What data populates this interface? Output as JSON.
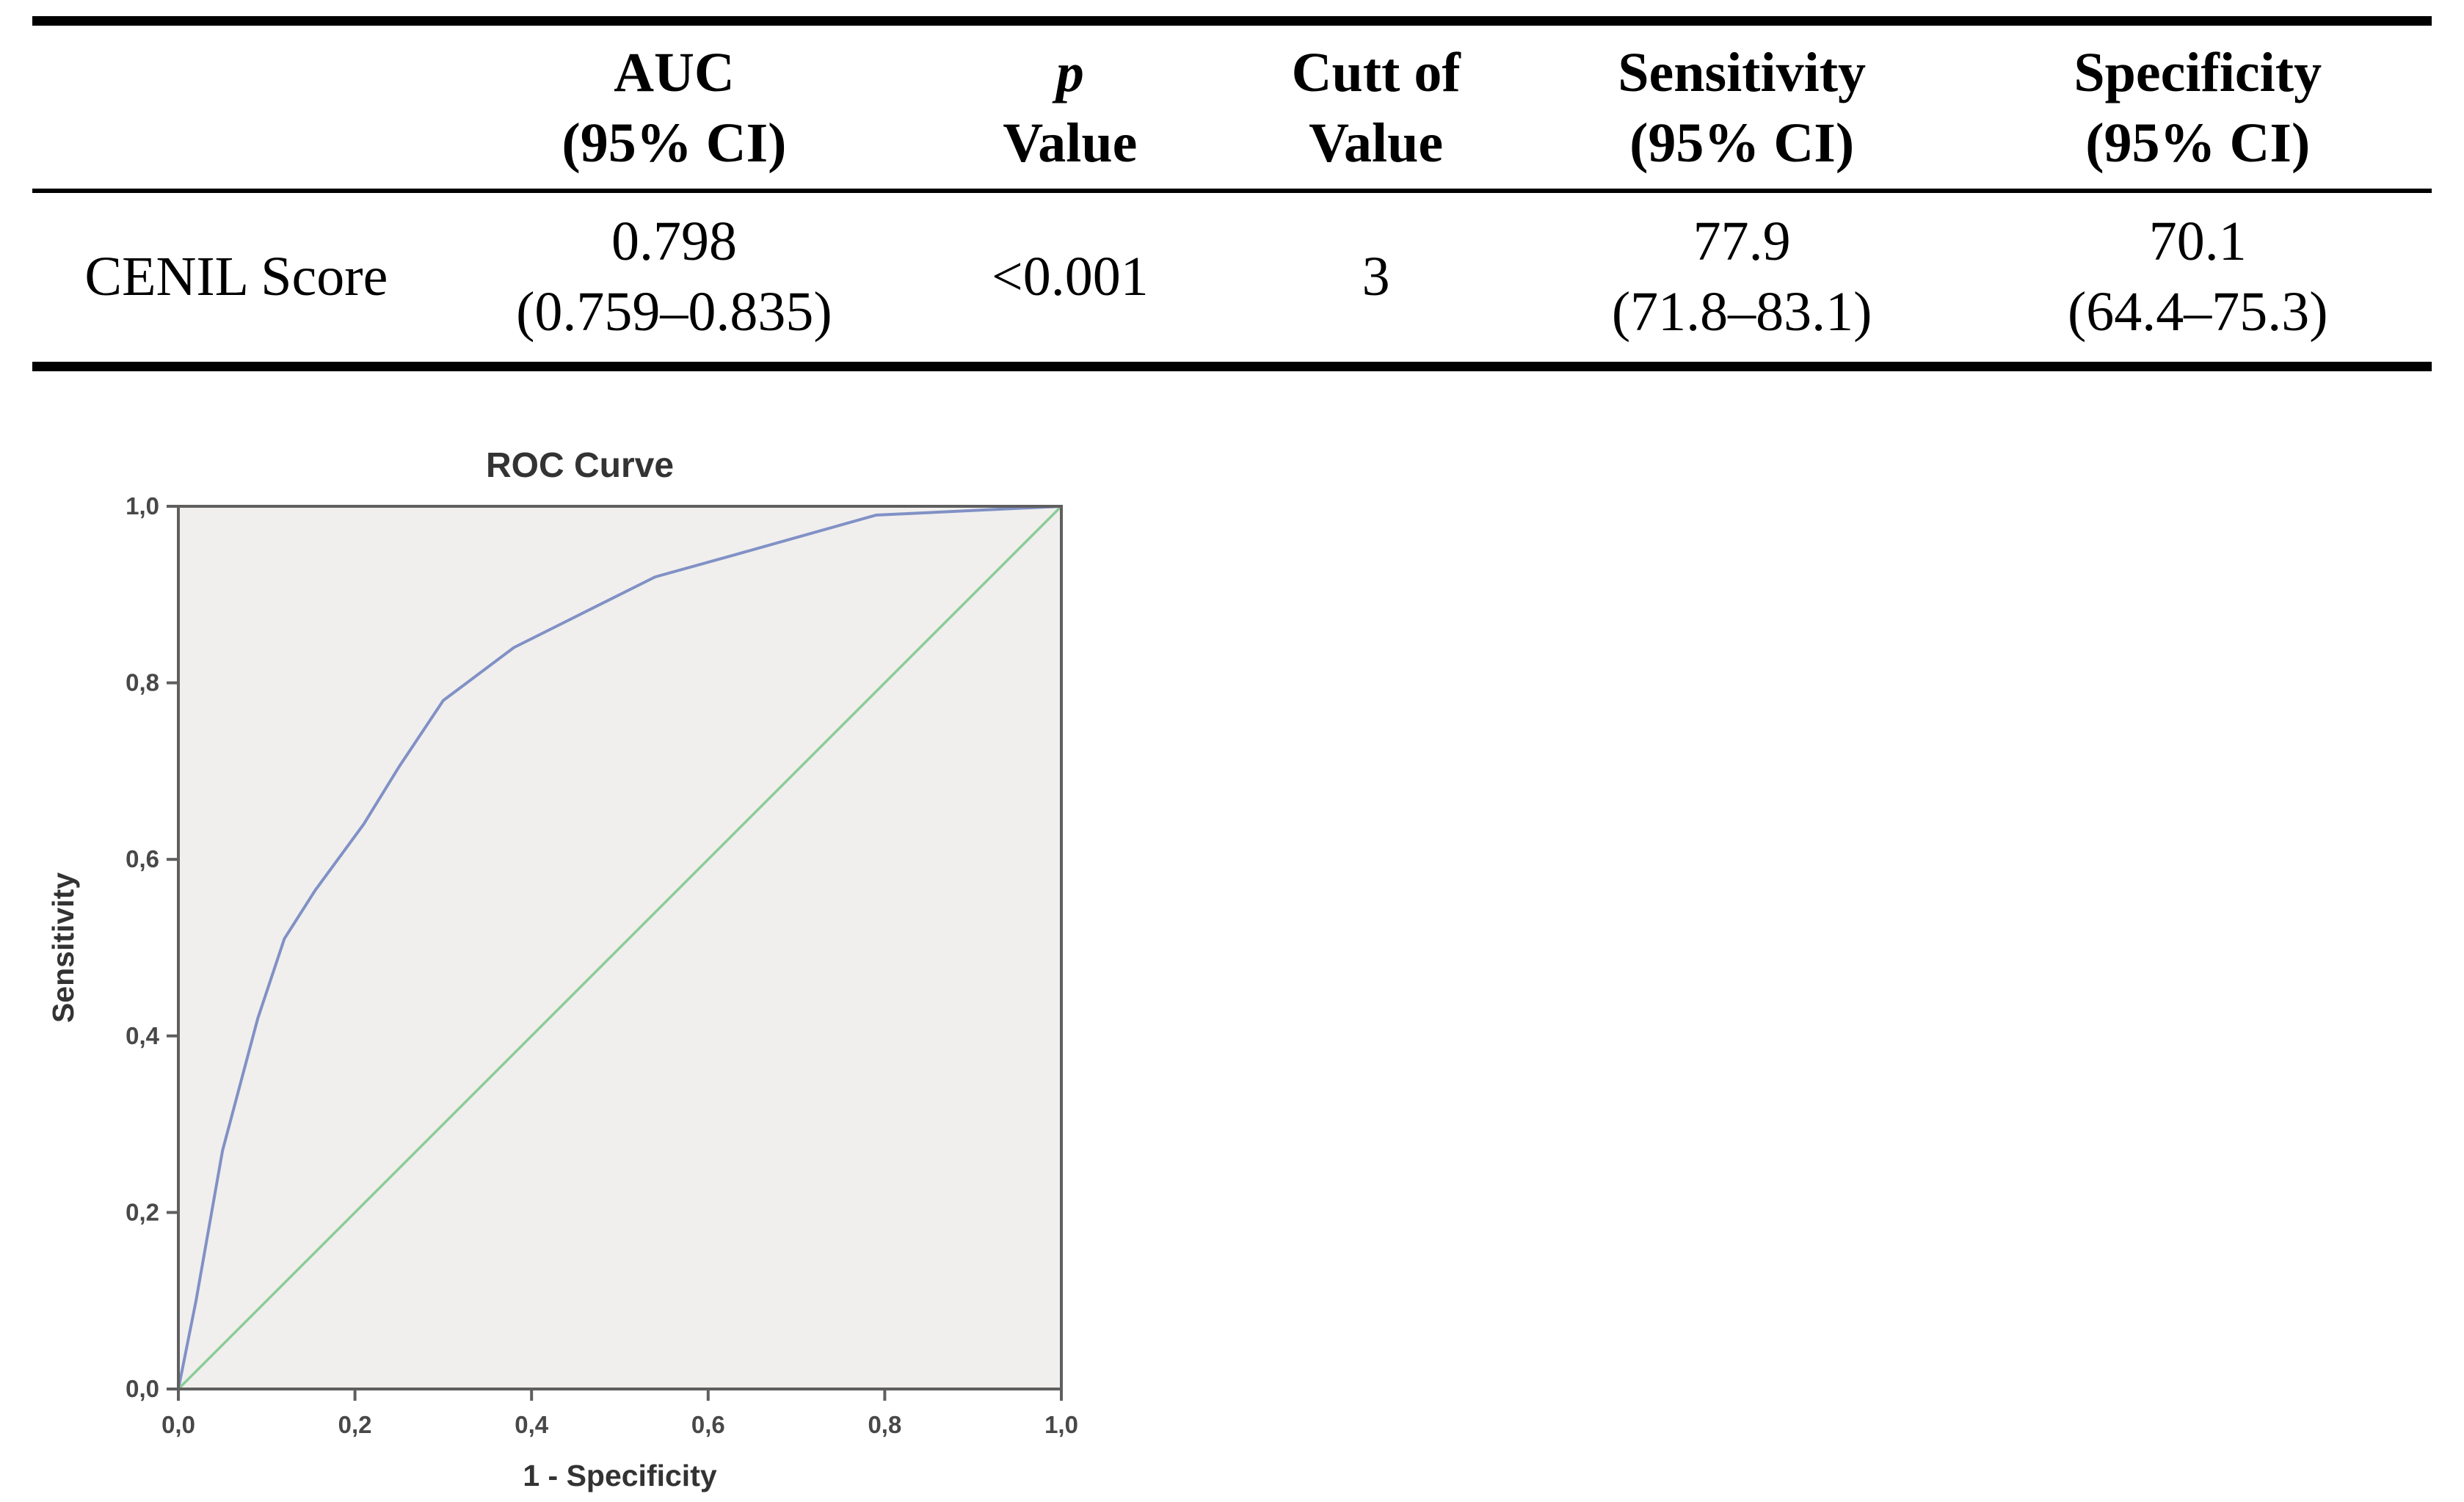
{
  "table": {
    "header": {
      "rowlabel": "",
      "auc": {
        "line1": "AUC",
        "line2": "(95% CI)"
      },
      "p": {
        "line1": "p",
        "line2": "Value"
      },
      "cutoff": {
        "line1": "Cutt of",
        "line2": "Value"
      },
      "sensitivity": {
        "line1": "Sensitivity",
        "line2": "(95% CI)"
      },
      "specificity": {
        "line1": "Specificity",
        "line2": "(95% CI)"
      }
    },
    "row": {
      "label": "CENIL Score",
      "auc": "0.798",
      "auc_ci": "(0.759–0.835)",
      "p": "<0.001",
      "cutoff": "3",
      "sensitivity": "77.9",
      "sensitivity_ci": "(71.8–83.1)",
      "specificity": "70.1",
      "specificity_ci": "(64.4–75.3)"
    }
  },
  "chart_data": {
    "type": "line",
    "title": "ROC Curve",
    "xlabel": "1 - Specificity",
    "ylabel": "Sensitivity",
    "xlim": [
      0,
      1
    ],
    "ylim": [
      0,
      1
    ],
    "grid": false,
    "legend": "none",
    "plot_bg": "#f0efed",
    "frame_color": "#5f5f5f",
    "xticks": {
      "values": [
        0,
        0.2,
        0.4,
        0.6,
        0.8,
        1.0
      ],
      "labels": [
        "0,0",
        "0,2",
        "0,4",
        "0,6",
        "0,8",
        "1,0"
      ]
    },
    "yticks": {
      "values": [
        0,
        0.2,
        0.4,
        0.6,
        0.8,
        1.0
      ],
      "labels": [
        "0,0",
        "0,2",
        "0,4",
        "0,6",
        "0,8",
        "1,0"
      ]
    },
    "series": [
      {
        "name": "ROC curve (CENIL Score)",
        "color": "#8191c6",
        "width": 4,
        "points": [
          [
            0,
            0
          ],
          [
            0.02,
            0.1
          ],
          [
            0.05,
            0.27
          ],
          [
            0.09,
            0.42
          ],
          [
            0.12,
            0.51
          ],
          [
            0.155,
            0.565
          ],
          [
            0.21,
            0.64
          ],
          [
            0.25,
            0.705
          ],
          [
            0.3,
            0.78
          ],
          [
            0.38,
            0.84
          ],
          [
            0.47,
            0.885
          ],
          [
            0.54,
            0.92
          ],
          [
            0.63,
            0.945
          ],
          [
            0.79,
            0.99
          ],
          [
            1.0,
            1.0
          ]
        ]
      },
      {
        "name": "Reference diagonal",
        "color": "#8bcc97",
        "width": 3.5,
        "points": [
          [
            0,
            0
          ],
          [
            1,
            1
          ]
        ]
      }
    ]
  }
}
